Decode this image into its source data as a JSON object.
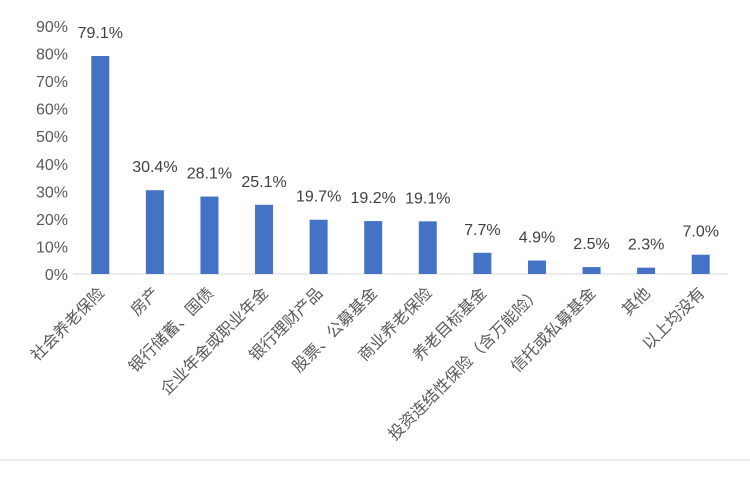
{
  "chart_data": {
    "type": "bar",
    "categories": [
      "社会养老保险",
      "房产",
      "银行储蓄、国债",
      "企业年金或职业年金",
      "银行理财产品",
      "股票、公募基金",
      "商业养老保险",
      "养老目标基金",
      "投资连结性保险（含万能险）",
      "信托或私募基金",
      "其他",
      "以上均没有"
    ],
    "values": [
      79.1,
      30.4,
      28.1,
      25.1,
      19.7,
      19.2,
      19.1,
      7.7,
      4.9,
      2.5,
      2.3,
      7.0
    ],
    "data_labels": [
      "79.1%",
      "30.4%",
      "28.1%",
      "25.1%",
      "19.7%",
      "19.2%",
      "19.1%",
      "7.7%",
      "4.9%",
      "2.5%",
      "2.3%",
      "7.0%"
    ],
    "y_ticks": [
      "0%",
      "10%",
      "20%",
      "30%",
      "40%",
      "50%",
      "60%",
      "70%",
      "80%",
      "90%"
    ],
    "ylim": [
      0,
      90
    ],
    "grid": false,
    "legend": "none",
    "bar_color": "#4472C4"
  }
}
